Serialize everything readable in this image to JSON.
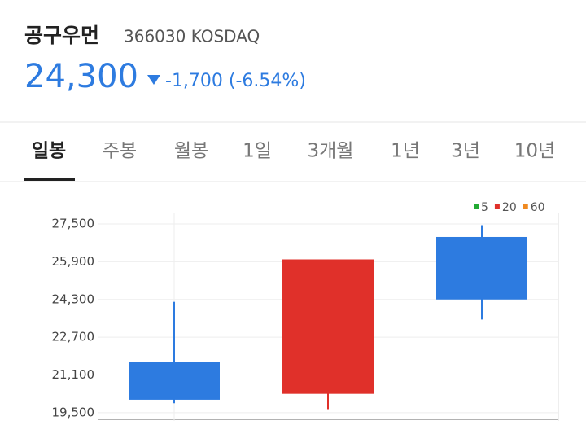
{
  "header": {
    "name": "공구우먼",
    "code_market": "366030 KOSDAQ",
    "price": "24,300",
    "change": "-1,700 (-6.54%)"
  },
  "tabs": [
    "일봉",
    "주봉",
    "월봉",
    "1일",
    "3개월",
    "1년",
    "3년",
    "10년"
  ],
  "chart_data": {
    "type": "candlestick",
    "categories": [
      null,
      null,
      null
    ],
    "open": [
      21650,
      20300,
      26950
    ],
    "high": [
      24200,
      26000,
      27450
    ],
    "low": [
      19900,
      19650,
      23450
    ],
    "close": [
      20050,
      26000,
      24300
    ],
    "up_color": "#e0302a",
    "down_color": "#2d7be0",
    "series": [
      {
        "name": "5",
        "color": "#22aa33"
      },
      {
        "name": "20",
        "color": "#e0302a"
      },
      {
        "name": "60",
        "color": "#f08a20"
      }
    ],
    "ylim": [
      19150,
      27950
    ],
    "yticks": [
      {
        "value": 19500,
        "label": "19,500"
      },
      {
        "value": 21100,
        "label": "21,100"
      },
      {
        "value": 22700,
        "label": "22,700"
      },
      {
        "value": 24300,
        "label": "24,300"
      },
      {
        "value": 25900,
        "label": "25,900"
      },
      {
        "value": 27500,
        "label": "27,500"
      }
    ],
    "grid": true
  }
}
